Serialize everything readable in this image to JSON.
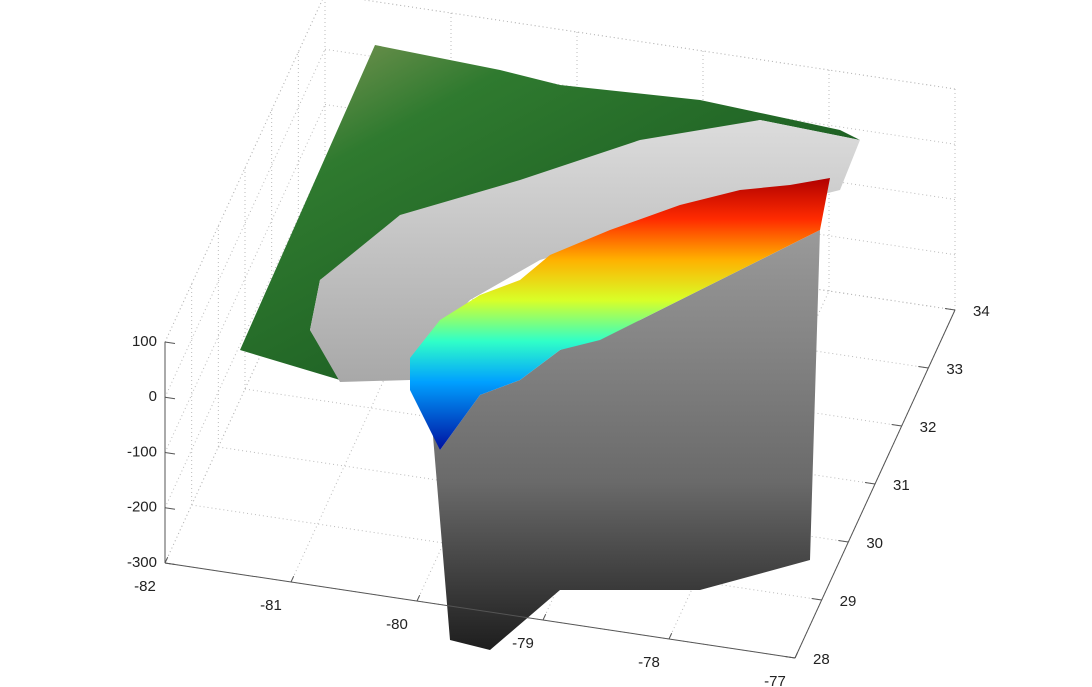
{
  "chart_data": {
    "type": "surface3d",
    "xlim": [
      -82,
      -77
    ],
    "xticks": [
      -82,
      -81,
      -80,
      -79,
      -78,
      -77
    ],
    "ylim": [
      28,
      34
    ],
    "yticks": [
      28,
      29,
      30,
      31,
      32,
      33,
      34
    ],
    "zlim": [
      -300,
      100
    ],
    "zticks": [
      -300,
      -200,
      -100,
      0,
      100
    ],
    "grid": true
  }
}
